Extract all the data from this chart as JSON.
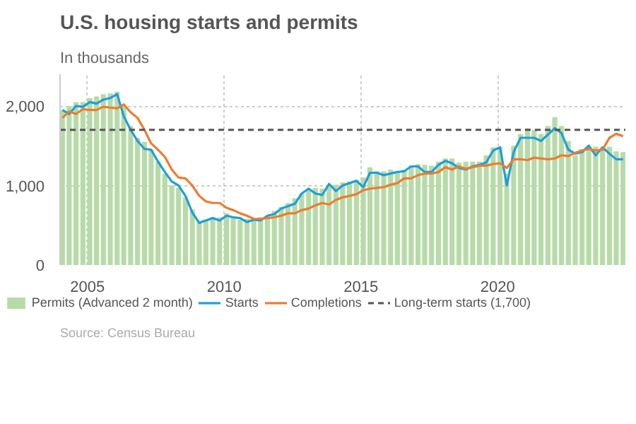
{
  "chart_data": {
    "type": "line",
    "title": "U.S. housing starts and permits",
    "subtitle": "In thousands",
    "annotations": [
      "Source: Census Bureau"
    ],
    "x": [
      "2004-02",
      "2004-05",
      "2004-08",
      "2004-11",
      "2005-02",
      "2005-05",
      "2005-08",
      "2005-11",
      "2006-02",
      "2006-05",
      "2006-08",
      "2006-11",
      "2007-02",
      "2007-05",
      "2007-08",
      "2007-11",
      "2008-02",
      "2008-05",
      "2008-08",
      "2008-11",
      "2009-02",
      "2009-05",
      "2009-08",
      "2009-11",
      "2010-02",
      "2010-05",
      "2010-08",
      "2010-11",
      "2011-02",
      "2011-05",
      "2011-08",
      "2011-11",
      "2012-02",
      "2012-05",
      "2012-08",
      "2012-11",
      "2013-02",
      "2013-05",
      "2013-08",
      "2013-11",
      "2014-02",
      "2014-05",
      "2014-08",
      "2014-11",
      "2015-02",
      "2015-05",
      "2015-08",
      "2015-11",
      "2016-02",
      "2016-05",
      "2016-08",
      "2016-11",
      "2017-02",
      "2017-05",
      "2017-08",
      "2017-11",
      "2018-02",
      "2018-05",
      "2018-08",
      "2018-11",
      "2019-02",
      "2019-05",
      "2019-08",
      "2019-11",
      "2020-02",
      "2020-05",
      "2020-08",
      "2020-11",
      "2021-02",
      "2021-05",
      "2021-08",
      "2021-11",
      "2022-02",
      "2022-05",
      "2022-08",
      "2022-11",
      "2023-02",
      "2023-05",
      "2023-08",
      "2023-11",
      "2024-02",
      "2024-05",
      "2024-08"
    ],
    "series": [
      {
        "name": "Permits (Advanced 2 month)",
        "type": "bar",
        "color": "#b7dba8",
        "values": [
          1950,
          2000,
          2050,
          2050,
          2100,
          2120,
          2150,
          2160,
          2180,
          2000,
          1750,
          1600,
          1550,
          1450,
          1300,
          1150,
          1000,
          970,
          850,
          700,
          550,
          570,
          600,
          600,
          650,
          610,
          570,
          580,
          570,
          600,
          610,
          680,
          730,
          780,
          840,
          900,
          950,
          970,
          960,
          1000,
          1010,
          1040,
          1050,
          1070,
          1100,
          1230,
          1180,
          1180,
          1200,
          1180,
          1200,
          1250,
          1270,
          1260,
          1250,
          1300,
          1340,
          1340,
          1290,
          1300,
          1300,
          1300,
          1380,
          1480,
          1480,
          1150,
          1500,
          1650,
          1720,
          1700,
          1650,
          1750,
          1860,
          1750,
          1560,
          1380,
          1460,
          1480,
          1490,
          1470,
          1490,
          1430,
          1420
        ]
      },
      {
        "name": "Starts",
        "color": "#1f9fd8",
        "values": [
          1950,
          1900,
          2000,
          1990,
          2050,
          2030,
          2080,
          2100,
          2150,
          1870,
          1700,
          1560,
          1460,
          1450,
          1300,
          1170,
          1050,
          1000,
          870,
          660,
          530,
          560,
          590,
          560,
          620,
          600,
          590,
          540,
          570,
          560,
          620,
          640,
          710,
          740,
          770,
          900,
          960,
          900,
          880,
          1020,
          930,
          1000,
          1030,
          1060,
          980,
          1160,
          1160,
          1130,
          1150,
          1170,
          1180,
          1240,
          1240,
          1170,
          1170,
          1260,
          1310,
          1280,
          1220,
          1200,
          1240,
          1260,
          1290,
          1440,
          1480,
          1000,
          1420,
          1600,
          1600,
          1600,
          1560,
          1640,
          1720,
          1660,
          1450,
          1400,
          1420,
          1500,
          1380,
          1480,
          1400,
          1330,
          1330
        ]
      },
      {
        "name": "Completions",
        "color": "#ec7c30",
        "values": [
          1850,
          1930,
          1900,
          1960,
          1950,
          1950,
          1990,
          1980,
          1970,
          2020,
          1920,
          1850,
          1700,
          1530,
          1450,
          1360,
          1200,
          1100,
          1090,
          1000,
          870,
          800,
          780,
          780,
          720,
          690,
          650,
          620,
          580,
          580,
          590,
          600,
          620,
          650,
          650,
          690,
          710,
          750,
          780,
          760,
          820,
          850,
          870,
          890,
          940,
          960,
          970,
          980,
          1010,
          1030,
          1090,
          1090,
          1130,
          1150,
          1150,
          1170,
          1230,
          1200,
          1240,
          1210,
          1230,
          1250,
          1250,
          1270,
          1280,
          1220,
          1330,
          1330,
          1320,
          1350,
          1340,
          1330,
          1340,
          1380,
          1370,
          1410,
          1440,
          1460,
          1440,
          1450,
          1600,
          1650,
          1620
        ]
      }
    ],
    "ref_lines": [
      {
        "axis": "y",
        "value": 1700,
        "label": "Long-term starts (1,700)",
        "color": "#555555",
        "line_style": "dashed"
      }
    ],
    "xlim": [
      "2004-01",
      "2024-09"
    ],
    "xticks": [
      "2005",
      "2010",
      "2015",
      "2020"
    ],
    "ylim": [
      0,
      2400
    ],
    "yticks": [
      0,
      {
        "value": 1000,
        "label": "1,000"
      },
      {
        "value": 2000,
        "label": "2,000"
      }
    ],
    "grid": true,
    "legend": "bottom"
  }
}
